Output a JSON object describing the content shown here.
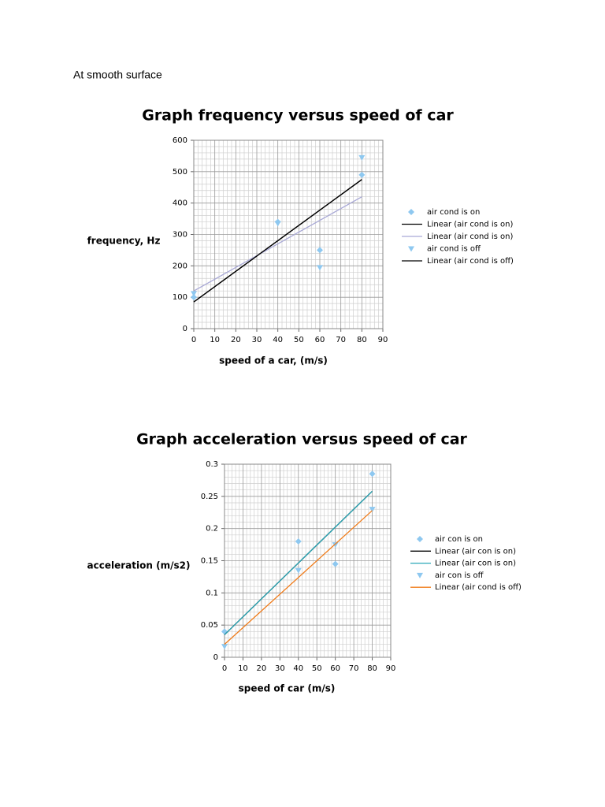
{
  "heading": "At smooth surface",
  "chart_data": [
    {
      "type": "scatter",
      "title": "Graph frequency versus speed of car",
      "x_label": "speed of a car, (m/s)",
      "y_label": "frequency, Hz",
      "xlim": [
        0,
        90
      ],
      "xticks": [
        0,
        10,
        20,
        30,
        40,
        50,
        60,
        70,
        80,
        90
      ],
      "ylim": [
        0,
        600
      ],
      "yticks": [
        0,
        100,
        200,
        300,
        400,
        500,
        600
      ],
      "grid": true,
      "minor_divisions": 5,
      "legend": "right",
      "series": [
        {
          "name": "air cond is on",
          "style": "diamond",
          "color": "#8ec8f0",
          "x": [
            0,
            40,
            60,
            80
          ],
          "values": [
            100,
            340,
            250,
            490
          ]
        },
        {
          "name": "Linear (air cond is on)",
          "style": "line",
          "color": "#000000",
          "x": [
            0,
            80
          ],
          "values": [
            85,
            475
          ]
        },
        {
          "name": "Linear (air cond is on)",
          "style": "line",
          "color": "#a9a9d6",
          "x": [
            0,
            80
          ],
          "values": [
            120,
            420
          ]
        },
        {
          "name": "air cond is off",
          "style": "triangle",
          "color": "#8ec8f0",
          "x": [
            0,
            40,
            60,
            80
          ],
          "values": [
            112,
            335,
            195,
            545
          ]
        },
        {
          "name": "Linear (air cond is off)",
          "style": "line",
          "color": "#000000",
          "x": [
            0,
            80
          ],
          "values": [
            85,
            475
          ]
        }
      ]
    },
    {
      "type": "scatter",
      "title": "Graph acceleration versus speed of car",
      "x_label": "speed of car (m/s)",
      "y_label": "acceleration (m/s2)",
      "xlim": [
        0,
        90
      ],
      "xticks": [
        0,
        10,
        20,
        30,
        40,
        50,
        60,
        70,
        80,
        90
      ],
      "ylim": [
        0,
        0.3
      ],
      "yticks": [
        0,
        0.05,
        0.1,
        0.15,
        0.2,
        0.25,
        0.3
      ],
      "grid": true,
      "minor_divisions": 5,
      "legend": "right",
      "series": [
        {
          "name": "air con is on",
          "style": "diamond",
          "color": "#8ec8f0",
          "x": [
            0,
            40,
            60,
            80
          ],
          "values": [
            0.04,
            0.18,
            0.145,
            0.285
          ]
        },
        {
          "name": "Linear (air con is on)",
          "style": "line",
          "color": "#000000",
          "x": [
            0,
            80
          ],
          "values": [
            0.035,
            0.258
          ]
        },
        {
          "name": "Linear (air con is on)",
          "style": "line",
          "color": "#2aa8b8",
          "x": [
            0,
            80
          ],
          "values": [
            0.035,
            0.258
          ]
        },
        {
          "name": "air con is off",
          "style": "triangle",
          "color": "#8ec8f0",
          "x": [
            0,
            40,
            60,
            80
          ],
          "values": [
            0.017,
            0.135,
            0.175,
            0.23
          ]
        },
        {
          "name": "Linear (air cond is off)",
          "style": "line",
          "color": "#f07c1a",
          "x": [
            0,
            80
          ],
          "values": [
            0.02,
            0.228
          ]
        }
      ]
    }
  ]
}
